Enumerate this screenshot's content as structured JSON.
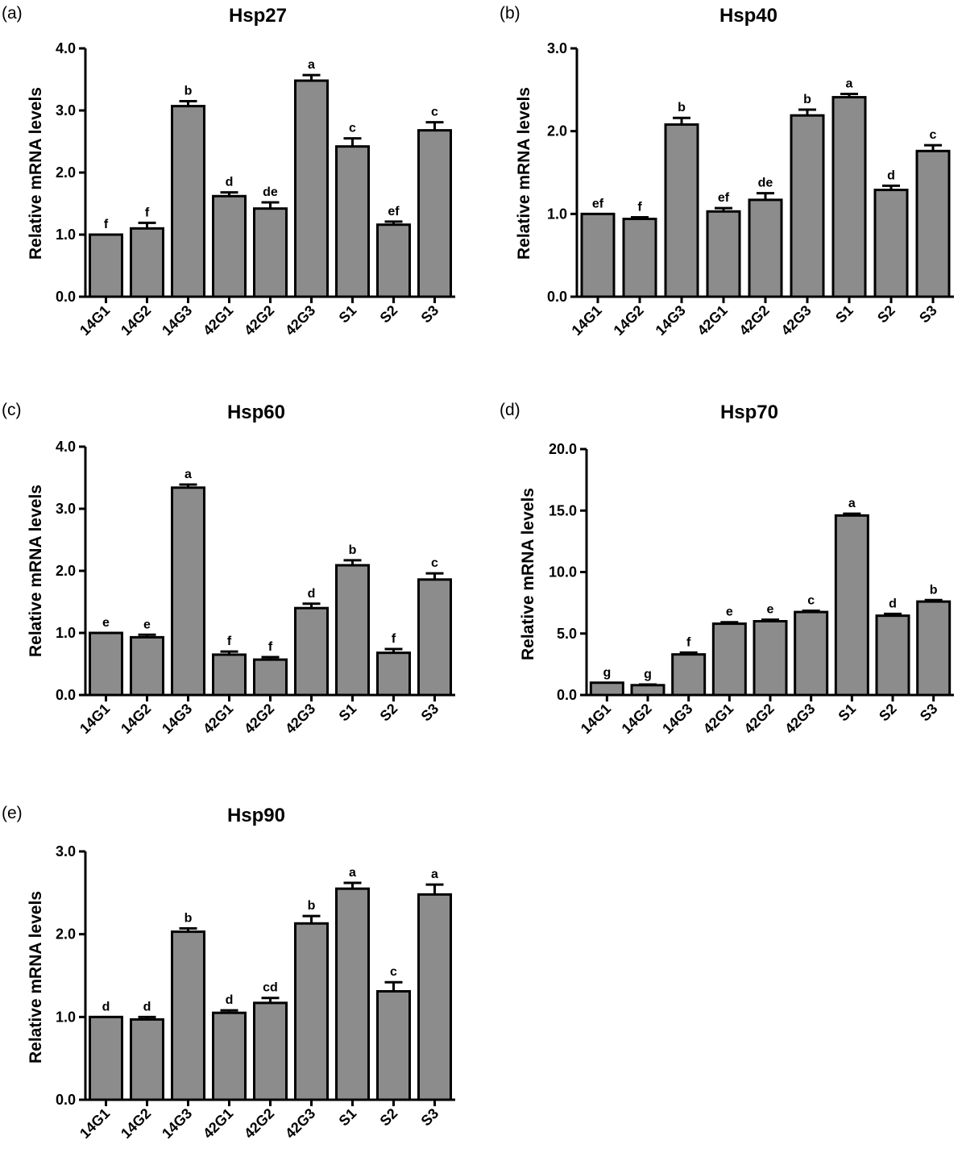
{
  "figure": {
    "charts": [
      {
        "panel": "(a)",
        "title": "Hsp27"
      },
      {
        "panel": "(b)",
        "title": "Hsp40"
      },
      {
        "panel": "(c)",
        "title": "Hsp60"
      },
      {
        "panel": "(d)",
        "title": "Hsp70"
      },
      {
        "panel": "(e)",
        "title": "Hsp90"
      }
    ]
  },
  "colors": {
    "bar_fill": "#8c8c8c",
    "bar_stroke": "#000000",
    "axis": "#000000"
  },
  "chart_data": [
    {
      "type": "bar",
      "panel": "(a)",
      "title": "Hsp27",
      "xlabel": "",
      "ylabel": "Relative mRNA levels",
      "ylim": [
        0,
        4
      ],
      "yticks": [
        "0.0",
        "1.0",
        "2.0",
        "3.0",
        "4.0"
      ],
      "categories": [
        "14G1",
        "14G2",
        "14G3",
        "42G1",
        "42G2",
        "42G3",
        "S1",
        "S2",
        "S3"
      ],
      "values": [
        1.0,
        1.1,
        3.07,
        1.62,
        1.42,
        3.48,
        2.42,
        1.16,
        2.68
      ],
      "errors": [
        0.0,
        0.09,
        0.08,
        0.06,
        0.1,
        0.09,
        0.13,
        0.05,
        0.13
      ],
      "labels": [
        "f",
        "f",
        "b",
        "d",
        "de",
        "a",
        "c",
        "ef",
        "c"
      ]
    },
    {
      "type": "bar",
      "panel": "(b)",
      "title": "Hsp40",
      "xlabel": "",
      "ylabel": "Relative mRNA levels",
      "ylim": [
        0,
        3
      ],
      "yticks": [
        "0.0",
        "1.0",
        "2.0",
        "3.0"
      ],
      "categories": [
        "14G1",
        "14G2",
        "14G3",
        "42G1",
        "42G2",
        "42G3",
        "S1",
        "S2",
        "S3"
      ],
      "values": [
        1.0,
        0.94,
        2.08,
        1.03,
        1.17,
        2.19,
        2.41,
        1.29,
        1.76
      ],
      "errors": [
        0.0,
        0.02,
        0.08,
        0.04,
        0.08,
        0.07,
        0.04,
        0.05,
        0.07
      ],
      "labels": [
        "ef",
        "f",
        "b",
        "ef",
        "de",
        "b",
        "a",
        "d",
        "c"
      ]
    },
    {
      "type": "bar",
      "panel": "(c)",
      "title": "Hsp60",
      "xlabel": "",
      "ylabel": "Relative mRNA levels",
      "ylim": [
        0,
        4
      ],
      "yticks": [
        "0.0",
        "1.0",
        "2.0",
        "3.0",
        "4.0"
      ],
      "categories": [
        "14G1",
        "14G2",
        "14G3",
        "42G1",
        "42G2",
        "42G3",
        "S1",
        "S2",
        "S3"
      ],
      "values": [
        1.0,
        0.93,
        3.34,
        0.65,
        0.57,
        1.4,
        2.09,
        0.68,
        1.86
      ],
      "errors": [
        0.0,
        0.04,
        0.05,
        0.05,
        0.04,
        0.07,
        0.08,
        0.06,
        0.1
      ],
      "labels": [
        "e",
        "e",
        "a",
        "f",
        "f",
        "d",
        "b",
        "f",
        "c"
      ]
    },
    {
      "type": "bar",
      "panel": "(d)",
      "title": "Hsp70",
      "xlabel": "",
      "ylabel": "Relative mRNA levels",
      "ylim": [
        0,
        20
      ],
      "yticks": [
        "0.0",
        "5.0",
        "10.0",
        "15.0",
        "20.0"
      ],
      "categories": [
        "14G1",
        "14G2",
        "14G3",
        "42G1",
        "42G2",
        "42G3",
        "S1",
        "S2",
        "S3"
      ],
      "values": [
        1.0,
        0.8,
        3.3,
        5.8,
        6.0,
        6.75,
        14.6,
        6.45,
        7.6
      ],
      "errors": [
        0.0,
        0.05,
        0.15,
        0.12,
        0.12,
        0.1,
        0.15,
        0.15,
        0.12
      ],
      "labels": [
        "g",
        "g",
        "f",
        "e",
        "e",
        "c",
        "a",
        "d",
        "b"
      ]
    },
    {
      "type": "bar",
      "panel": "(e)",
      "title": "Hsp90",
      "xlabel": "",
      "ylabel": "Relative mRNA levels",
      "ylim": [
        0,
        3
      ],
      "yticks": [
        "0.0",
        "1.0",
        "2.0",
        "3.0"
      ],
      "categories": [
        "14G1",
        "14G2",
        "14G3",
        "42G1",
        "42G2",
        "42G3",
        "S1",
        "S2",
        "S3"
      ],
      "values": [
        1.0,
        0.97,
        2.03,
        1.05,
        1.17,
        2.13,
        2.55,
        1.31,
        2.48
      ],
      "errors": [
        0.0,
        0.03,
        0.04,
        0.03,
        0.06,
        0.09,
        0.07,
        0.11,
        0.12
      ],
      "labels": [
        "d",
        "d",
        "b",
        "d",
        "cd",
        "b",
        "a",
        "c",
        "a"
      ]
    }
  ]
}
